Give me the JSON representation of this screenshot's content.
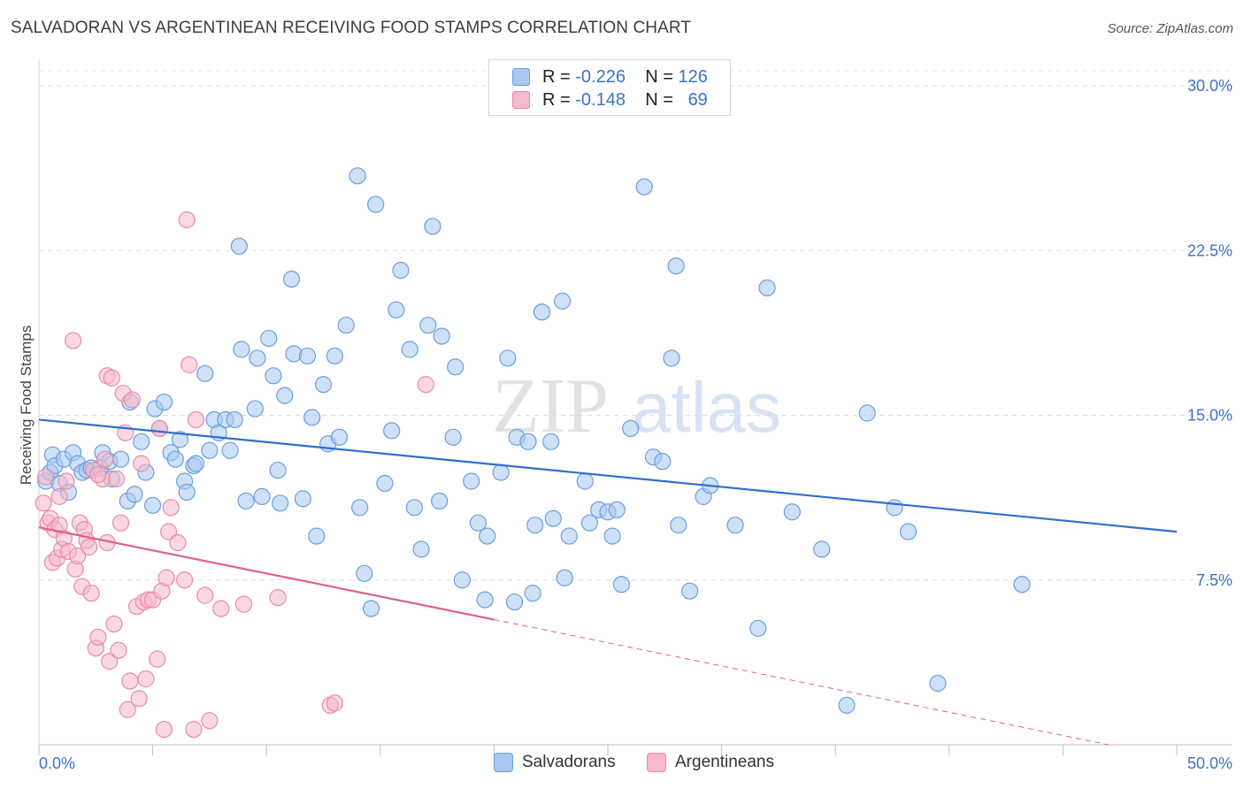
{
  "header": {
    "title": "SALVADORAN VS ARGENTINEAN RECEIVING FOOD STAMPS CORRELATION CHART",
    "source": "Source: ZipAtlas.com"
  },
  "watermark": {
    "part1": "ZIP",
    "part2": "atlas"
  },
  "legend": {
    "rows": [
      {
        "r_label": "R =",
        "r_value": "-0.226",
        "n_label": "N =",
        "n_value": "126",
        "color": "#a8c8f0",
        "border": "#6a9ee0"
      },
      {
        "r_label": "R =",
        "r_value": "-0.148",
        "n_label": "N =",
        "n_value": "69",
        "color": "#f6b8cb",
        "border": "#e98aa8"
      }
    ]
  },
  "bottom_legend": {
    "salvadorans": "Salvadorans",
    "argentineans": "Argentineans"
  },
  "chart_data": {
    "type": "scatter",
    "title": "SALVADORAN VS ARGENTINEAN RECEIVING FOOD STAMPS CORRELATION CHART",
    "xlabel": "",
    "ylabel": "Receiving Food Stamps",
    "xlim": [
      0,
      50
    ],
    "ylim": [
      0,
      30
    ],
    "x_tick_labels": [
      "0.0%",
      "50.0%"
    ],
    "y_ticks": [
      7.5,
      15.0,
      22.5,
      30.0
    ],
    "y_tick_labels": [
      "7.5%",
      "15.0%",
      "22.5%",
      "30.0%"
    ],
    "grid": true,
    "legend_position": "top-center",
    "series": [
      {
        "name": "Salvadorans",
        "color": "#a8c8f0",
        "stroke": "#6a9ee0",
        "trend": {
          "x": [
            0,
            50
          ],
          "y": [
            14.8,
            9.7
          ],
          "color": "#2f6fcf"
        },
        "points": [
          [
            0.3,
            12.0
          ],
          [
            0.5,
            12.4
          ],
          [
            0.6,
            13.2
          ],
          [
            0.7,
            12.7
          ],
          [
            0.9,
            11.9
          ],
          [
            1.1,
            13.0
          ],
          [
            1.3,
            11.5
          ],
          [
            1.5,
            13.3
          ],
          [
            1.7,
            12.8
          ],
          [
            1.9,
            12.4
          ],
          [
            2.1,
            12.5
          ],
          [
            2.3,
            12.6
          ],
          [
            2.7,
            12.6
          ],
          [
            2.8,
            13.3
          ],
          [
            3.1,
            12.9
          ],
          [
            3.2,
            12.1
          ],
          [
            3.6,
            13.0
          ],
          [
            3.9,
            11.1
          ],
          [
            4.0,
            15.6
          ],
          [
            4.2,
            11.4
          ],
          [
            4.5,
            13.8
          ],
          [
            4.7,
            12.4
          ],
          [
            5.0,
            10.9
          ],
          [
            5.1,
            15.3
          ],
          [
            5.3,
            14.4
          ],
          [
            5.5,
            15.6
          ],
          [
            5.8,
            13.3
          ],
          [
            6.0,
            13.0
          ],
          [
            6.2,
            13.9
          ],
          [
            6.4,
            12.0
          ],
          [
            6.5,
            11.5
          ],
          [
            6.8,
            12.7
          ],
          [
            6.9,
            12.8
          ],
          [
            7.3,
            16.9
          ],
          [
            7.5,
            13.4
          ],
          [
            7.7,
            14.8
          ],
          [
            7.9,
            14.2
          ],
          [
            8.2,
            14.8
          ],
          [
            8.4,
            13.4
          ],
          [
            8.6,
            14.8
          ],
          [
            8.8,
            22.7
          ],
          [
            8.9,
            18.0
          ],
          [
            9.1,
            11.1
          ],
          [
            9.5,
            15.3
          ],
          [
            9.6,
            17.6
          ],
          [
            9.8,
            11.3
          ],
          [
            10.1,
            18.5
          ],
          [
            10.3,
            16.8
          ],
          [
            10.5,
            12.5
          ],
          [
            10.6,
            11.0
          ],
          [
            10.8,
            15.9
          ],
          [
            11.1,
            21.2
          ],
          [
            11.2,
            17.8
          ],
          [
            11.6,
            11.2
          ],
          [
            11.8,
            17.7
          ],
          [
            12.0,
            14.9
          ],
          [
            12.2,
            9.5
          ],
          [
            12.5,
            16.4
          ],
          [
            12.7,
            13.7
          ],
          [
            13.0,
            17.7
          ],
          [
            13.2,
            14.0
          ],
          [
            13.5,
            19.1
          ],
          [
            14.0,
            25.9
          ],
          [
            14.1,
            10.8
          ],
          [
            14.3,
            7.8
          ],
          [
            14.6,
            6.2
          ],
          [
            14.8,
            24.6
          ],
          [
            15.2,
            11.9
          ],
          [
            15.5,
            14.3
          ],
          [
            15.7,
            19.8
          ],
          [
            15.9,
            21.6
          ],
          [
            16.3,
            18.0
          ],
          [
            16.5,
            10.8
          ],
          [
            16.8,
            8.9
          ],
          [
            17.1,
            19.1
          ],
          [
            17.3,
            23.6
          ],
          [
            17.6,
            11.1
          ],
          [
            17.7,
            18.6
          ],
          [
            18.2,
            14.0
          ],
          [
            18.3,
            17.2
          ],
          [
            18.6,
            7.5
          ],
          [
            19.0,
            12.0
          ],
          [
            19.3,
            10.1
          ],
          [
            19.6,
            6.6
          ],
          [
            19.7,
            9.5
          ],
          [
            20.3,
            12.4
          ],
          [
            20.6,
            17.6
          ],
          [
            20.9,
            6.5
          ],
          [
            21.0,
            14.0
          ],
          [
            21.5,
            13.8
          ],
          [
            21.7,
            6.9
          ],
          [
            21.8,
            10.0
          ],
          [
            22.1,
            19.7
          ],
          [
            22.5,
            13.8
          ],
          [
            22.6,
            10.3
          ],
          [
            23.0,
            20.2
          ],
          [
            23.1,
            7.6
          ],
          [
            23.3,
            9.5
          ],
          [
            24.0,
            12.0
          ],
          [
            24.2,
            10.1
          ],
          [
            24.6,
            10.7
          ],
          [
            25.0,
            10.6
          ],
          [
            25.2,
            9.5
          ],
          [
            25.4,
            10.7
          ],
          [
            25.6,
            7.3
          ],
          [
            26.0,
            14.4
          ],
          [
            26.6,
            25.4
          ],
          [
            27.0,
            13.1
          ],
          [
            27.4,
            12.9
          ],
          [
            27.8,
            17.6
          ],
          [
            28.0,
            21.8
          ],
          [
            28.1,
            10.0
          ],
          [
            28.6,
            7.0
          ],
          [
            29.2,
            11.3
          ],
          [
            29.5,
            11.8
          ],
          [
            30.6,
            10.0
          ],
          [
            31.6,
            5.3
          ],
          [
            32.0,
            20.8
          ],
          [
            33.1,
            10.6
          ],
          [
            34.4,
            8.9
          ],
          [
            35.5,
            1.8
          ],
          [
            36.4,
            15.1
          ],
          [
            37.6,
            10.8
          ],
          [
            38.2,
            9.7
          ],
          [
            39.5,
            2.8
          ],
          [
            43.2,
            7.3
          ]
        ]
      },
      {
        "name": "Argentineans",
        "color": "#f6b8cb",
        "stroke": "#e98aa8",
        "trend": {
          "x": [
            0,
            20
          ],
          "y": [
            9.9,
            5.7
          ],
          "dash_x": [
            20,
            47
          ],
          "dash_y": [
            5.7,
            0.0
          ],
          "color": "#e0608a"
        },
        "points": [
          [
            0.2,
            11.0
          ],
          [
            0.4,
            10.1
          ],
          [
            0.5,
            10.3
          ],
          [
            0.6,
            8.3
          ],
          [
            0.7,
            9.8
          ],
          [
            0.8,
            8.5
          ],
          [
            0.9,
            11.3
          ],
          [
            1.0,
            8.9
          ],
          [
            1.1,
            9.4
          ],
          [
            1.2,
            12.0
          ],
          [
            1.3,
            8.8
          ],
          [
            1.5,
            18.4
          ],
          [
            1.6,
            8.0
          ],
          [
            1.7,
            8.6
          ],
          [
            1.8,
            10.1
          ],
          [
            1.9,
            7.2
          ],
          [
            2.0,
            9.8
          ],
          [
            2.1,
            9.3
          ],
          [
            2.2,
            9.0
          ],
          [
            2.3,
            6.9
          ],
          [
            2.4,
            12.5
          ],
          [
            2.5,
            4.4
          ],
          [
            2.6,
            4.9
          ],
          [
            2.8,
            12.1
          ],
          [
            2.9,
            13.0
          ],
          [
            3.0,
            9.2
          ],
          [
            3.0,
            16.8
          ],
          [
            3.1,
            3.8
          ],
          [
            3.2,
            16.7
          ],
          [
            3.3,
            5.5
          ],
          [
            3.4,
            12.1
          ],
          [
            3.5,
            4.3
          ],
          [
            3.6,
            10.1
          ],
          [
            3.7,
            16.0
          ],
          [
            3.8,
            14.2
          ],
          [
            3.9,
            1.6
          ],
          [
            4.0,
            2.9
          ],
          [
            4.1,
            15.7
          ],
          [
            4.3,
            6.3
          ],
          [
            4.4,
            2.1
          ],
          [
            4.5,
            12.8
          ],
          [
            4.6,
            6.5
          ],
          [
            4.7,
            3.0
          ],
          [
            4.8,
            6.6
          ],
          [
            5.0,
            6.6
          ],
          [
            5.2,
            3.9
          ],
          [
            5.3,
            14.4
          ],
          [
            5.4,
            7.0
          ],
          [
            5.5,
            0.7
          ],
          [
            5.6,
            7.6
          ],
          [
            5.7,
            9.7
          ],
          [
            5.8,
            10.8
          ],
          [
            6.1,
            9.2
          ],
          [
            6.4,
            7.5
          ],
          [
            6.5,
            23.9
          ],
          [
            6.6,
            17.3
          ],
          [
            6.8,
            0.7
          ],
          [
            6.9,
            14.8
          ],
          [
            7.3,
            6.8
          ],
          [
            7.5,
            1.1
          ],
          [
            8.0,
            6.2
          ],
          [
            9.0,
            6.4
          ],
          [
            10.5,
            6.7
          ],
          [
            12.8,
            1.8
          ],
          [
            13.0,
            1.9
          ],
          [
            17.0,
            16.4
          ],
          [
            0.3,
            12.2
          ],
          [
            0.9,
            10.0
          ],
          [
            2.6,
            12.3
          ]
        ]
      }
    ]
  }
}
